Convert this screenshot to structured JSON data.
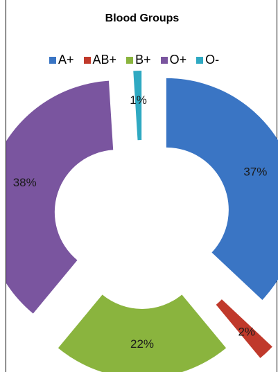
{
  "chart_data": {
    "type": "pie",
    "title": "Blood Groups",
    "donut": true,
    "legend_position": "top",
    "series": [
      {
        "name": "A+",
        "value": 37,
        "label": "37%",
        "color": "#3a75c4"
      },
      {
        "name": "AB+",
        "value": 2,
        "label": "2%",
        "color": "#c0392b"
      },
      {
        "name": "B+",
        "value": 22,
        "label": "22%",
        "color": "#8ab43e"
      },
      {
        "name": "O+",
        "value": 38,
        "label": "38%",
        "color": "#7a559f"
      },
      {
        "name": "O-",
        "value": 1,
        "label": "1%",
        "color": "#2fa9c2"
      }
    ]
  }
}
